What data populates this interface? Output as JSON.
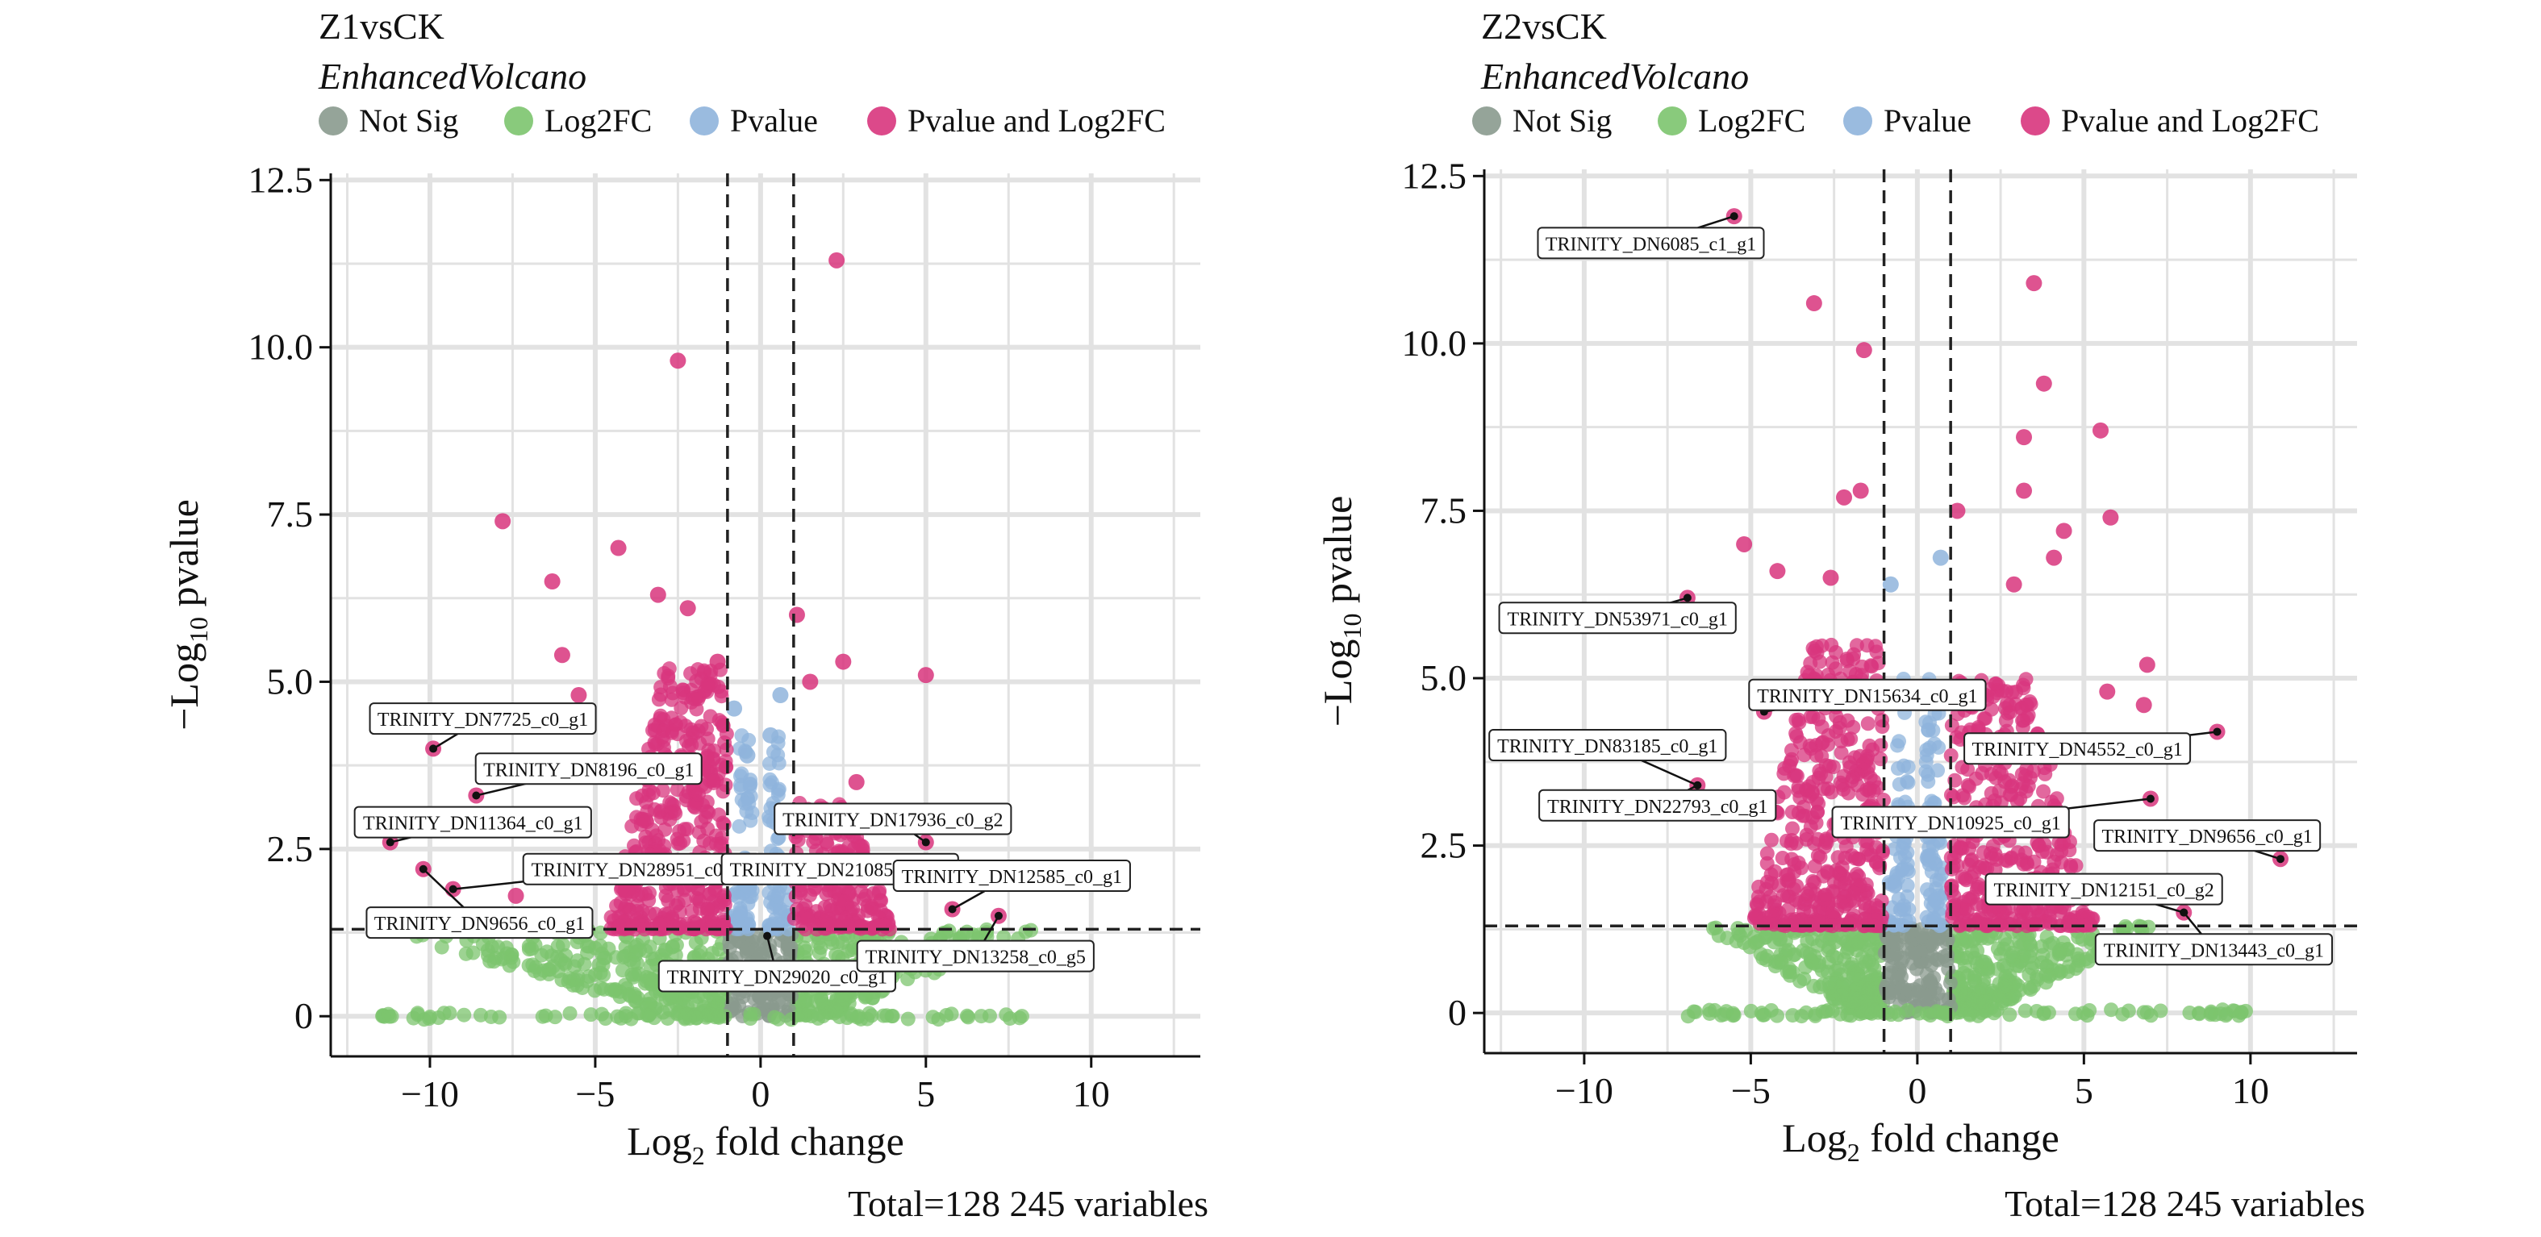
{
  "legend_labels": {
    "ns": "Not Sig",
    "fc": "Log2FC",
    "p": "Pvalue",
    "both": "Pvalue and Log2FC"
  },
  "colors": {
    "ns": "#8a9a8e",
    "fc": "#7cc46e",
    "p": "#8fb4dc",
    "both": "#d8357d"
  },
  "chart_data": [
    {
      "type": "scatter",
      "title": "Z1vsCK",
      "subtitle": "EnhancedVolcano",
      "xlabel_main": "Log",
      "xlabel_sub": "2",
      "xlabel_rest": " fold change",
      "ylabel_pre": "−Log",
      "ylabel_sub": "10",
      "ylabel_rest": " pvalue",
      "caption": "Total=128 245 variables",
      "xlim": [
        -13,
        13.3
      ],
      "ylim": [
        -0.6,
        12.6
      ],
      "xticks": [
        -10,
        -5,
        0,
        5,
        10
      ],
      "xtick_labels": [
        "−10",
        "−5",
        "0",
        "5",
        "10"
      ],
      "yticks": [
        0,
        2.5,
        5.0,
        7.5,
        10.0,
        12.5
      ],
      "ytick_labels": [
        "0",
        "2.5",
        "5.0",
        "7.5",
        "10.0",
        "12.5"
      ],
      "fc_cutoff": [
        -1,
        1
      ],
      "p_cutoff": 1.3,
      "grid": true,
      "legend_position": "top",
      "highlights": [
        {
          "x": 2.3,
          "y": 11.3,
          "cat": "both"
        },
        {
          "x": -2.5,
          "y": 9.8,
          "cat": "both"
        },
        {
          "x": -7.8,
          "y": 7.4,
          "cat": "both"
        },
        {
          "x": -4.3,
          "y": 7.0,
          "cat": "both"
        },
        {
          "x": -6.3,
          "y": 6.5,
          "cat": "both"
        },
        {
          "x": 1.1,
          "y": 6.0,
          "cat": "both"
        },
        {
          "x": -3.1,
          "y": 6.3,
          "cat": "both"
        },
        {
          "x": -2.2,
          "y": 6.1,
          "cat": "both"
        },
        {
          "x": -6.0,
          "y": 5.4,
          "cat": "both"
        },
        {
          "x": 5.0,
          "y": 5.1,
          "cat": "both"
        },
        {
          "x": 2.5,
          "y": 5.3,
          "cat": "both"
        },
        {
          "x": 1.5,
          "y": 5.0,
          "cat": "both"
        },
        {
          "x": -5.5,
          "y": 4.8,
          "cat": "both"
        },
        {
          "x": -9.9,
          "y": 4.0,
          "cat": "both"
        },
        {
          "x": -8.6,
          "y": 3.3,
          "cat": "both"
        },
        {
          "x": -6.1,
          "y": 3.8,
          "cat": "both"
        },
        {
          "x": -11.2,
          "y": 2.6,
          "cat": "both"
        },
        {
          "x": -10.2,
          "y": 2.2,
          "cat": "both"
        },
        {
          "x": -9.3,
          "y": 1.9,
          "cat": "both"
        },
        {
          "x": -7.4,
          "y": 1.8,
          "cat": "both"
        },
        {
          "x": 2.9,
          "y": 3.5,
          "cat": "both"
        },
        {
          "x": 5.0,
          "y": 2.6,
          "cat": "both"
        },
        {
          "x": 4.2,
          "y": 2.1,
          "cat": "both"
        },
        {
          "x": 5.8,
          "y": 1.6,
          "cat": "both"
        },
        {
          "x": 7.2,
          "y": 1.5,
          "cat": "both"
        },
        {
          "x": -1.3,
          "y": 5.3,
          "cat": "both"
        },
        {
          "x": -0.8,
          "y": 4.6,
          "cat": "p"
        },
        {
          "x": 0.6,
          "y": 4.8,
          "cat": "p"
        },
        {
          "x": 0.3,
          "y": 4.2,
          "cat": "p"
        },
        {
          "x": -0.4,
          "y": 3.9,
          "cat": "p"
        }
      ],
      "dense_regions": [
        {
          "cat": "fc",
          "x0": -11.5,
          "x1": -1,
          "y0": 0,
          "y1": 1.3,
          "n": 260,
          "shape": "wedge-left"
        },
        {
          "cat": "fc",
          "x0": 1,
          "x1": 8.5,
          "y0": 0,
          "y1": 1.3,
          "n": 220,
          "shape": "wedge-right"
        },
        {
          "cat": "ns",
          "x0": -1,
          "x1": 1,
          "y0": 0,
          "y1": 1.3,
          "n": 140,
          "shape": "box"
        },
        {
          "cat": "p",
          "x0": -1,
          "x1": 1,
          "y0": 1.3,
          "y1": 4.2,
          "n": 120,
          "shape": "funnel"
        },
        {
          "cat": "both",
          "x0": -4.8,
          "x1": -1,
          "y0": 1.3,
          "y1": 5.2,
          "n": 420,
          "shape": "mound-left"
        },
        {
          "cat": "both",
          "x0": 1,
          "x1": 4.2,
          "y0": 1.3,
          "y1": 3.2,
          "n": 220,
          "shape": "mound-right"
        },
        {
          "cat": "fc",
          "x0": -11.5,
          "x1": 8,
          "y0": -0.05,
          "y1": 0.05,
          "n": 90,
          "shape": "line"
        }
      ],
      "labels": [
        {
          "text": "TRINITY_DN7725_c0_g1",
          "px": -9.9,
          "py": 4.0,
          "lx": -8.4,
          "ly": 4.45
        },
        {
          "text": "TRINITY_DN8196_c0_g1",
          "px": -8.6,
          "py": 3.3,
          "lx": -5.2,
          "ly": 3.7
        },
        {
          "text": "TRINITY_DN11364_c0_g1",
          "px": -11.2,
          "py": 2.6,
          "lx": -8.7,
          "ly": 2.9
        },
        {
          "text": "TRINITY_DN28951_c0_g3",
          "px": -9.3,
          "py": 1.9,
          "lx": -3.6,
          "ly": 2.2
        },
        {
          "text": "TRINITY_DN9656_c0_g1",
          "px": -10.2,
          "py": 2.2,
          "lx": -8.5,
          "ly": 1.4
        },
        {
          "text": "TRINITY_DN29020_c0_g1",
          "px": 0.2,
          "py": 1.2,
          "lx": 0.5,
          "ly": 0.6
        },
        {
          "text": "TRINITY_DN17936_c0_g2",
          "px": 5.0,
          "py": 2.6,
          "lx": 4.0,
          "ly": 2.95
        },
        {
          "text": "TRINITY_DN21085_c2_g2",
          "px": 4.2,
          "py": 2.1,
          "lx": 2.4,
          "ly": 2.2
        },
        {
          "text": "TRINITY_DN12585_c0_g1",
          "px": 5.8,
          "py": 1.6,
          "lx": 7.6,
          "ly": 2.1
        },
        {
          "text": "TRINITY_DN13258_c0_g5",
          "px": 7.2,
          "py": 1.5,
          "lx": 6.5,
          "ly": 0.9
        }
      ]
    },
    {
      "type": "scatter",
      "title": "Z2vsCK",
      "subtitle": "EnhancedVolcano",
      "xlabel_main": "Log",
      "xlabel_sub": "2",
      "xlabel_rest": " fold change",
      "ylabel_pre": "−Log",
      "ylabel_sub": "10",
      "ylabel_rest": " pvalue",
      "caption": "Total=128 245 variables",
      "xlim": [
        -13,
        13.2
      ],
      "ylim": [
        -0.6,
        12.6
      ],
      "xticks": [
        -10,
        -5,
        0,
        5,
        10
      ],
      "xtick_labels": [
        "−10",
        "−5",
        "0",
        "5",
        "10"
      ],
      "yticks": [
        0,
        2.5,
        5.0,
        7.5,
        10.0,
        12.5
      ],
      "ytick_labels": [
        "0",
        "2.5",
        "5.0",
        "7.5",
        "10.0",
        "12.5"
      ],
      "fc_cutoff": [
        -1,
        1
      ],
      "p_cutoff": 1.3,
      "grid": true,
      "legend_position": "top",
      "highlights": [
        {
          "x": -5.5,
          "y": 11.9,
          "cat": "both"
        },
        {
          "x": -3.1,
          "y": 10.6,
          "cat": "both"
        },
        {
          "x": -1.6,
          "y": 9.9,
          "cat": "both"
        },
        {
          "x": 3.5,
          "y": 10.9,
          "cat": "both"
        },
        {
          "x": 3.8,
          "y": 9.4,
          "cat": "both"
        },
        {
          "x": 5.5,
          "y": 8.7,
          "cat": "both"
        },
        {
          "x": 3.2,
          "y": 8.6,
          "cat": "both"
        },
        {
          "x": 3.2,
          "y": 7.8,
          "cat": "both"
        },
        {
          "x": -1.7,
          "y": 7.8,
          "cat": "both"
        },
        {
          "x": -2.2,
          "y": 7.7,
          "cat": "both"
        },
        {
          "x": 5.8,
          "y": 7.4,
          "cat": "both"
        },
        {
          "x": 4.4,
          "y": 7.2,
          "cat": "both"
        },
        {
          "x": -6.9,
          "y": 6.2,
          "cat": "both"
        },
        {
          "x": -4.2,
          "y": 6.6,
          "cat": "both"
        },
        {
          "x": 1.2,
          "y": 7.5,
          "cat": "both"
        },
        {
          "x": 0.7,
          "y": 6.8,
          "cat": "p"
        },
        {
          "x": -0.8,
          "y": 6.4,
          "cat": "p"
        },
        {
          "x": 6.9,
          "y": 5.2,
          "cat": "both"
        },
        {
          "x": 9.0,
          "y": 4.2,
          "cat": "both"
        },
        {
          "x": 7.0,
          "y": 3.2,
          "cat": "both"
        },
        {
          "x": 10.9,
          "y": 2.3,
          "cat": "both"
        },
        {
          "x": 8.0,
          "y": 1.5,
          "cat": "both"
        },
        {
          "x": -6.6,
          "y": 3.4,
          "cat": "both"
        },
        {
          "x": -4.6,
          "y": 4.5,
          "cat": "both"
        },
        {
          "x": 6.8,
          "y": 4.6,
          "cat": "both"
        },
        {
          "x": 5.7,
          "y": 4.8,
          "cat": "both"
        },
        {
          "x": 4.1,
          "y": 6.8,
          "cat": "both"
        },
        {
          "x": 2.9,
          "y": 6.4,
          "cat": "both"
        },
        {
          "x": -5.2,
          "y": 7.0,
          "cat": "both"
        },
        {
          "x": -2.6,
          "y": 6.5,
          "cat": "both"
        }
      ],
      "dense_regions": [
        {
          "cat": "fc",
          "x0": -6.5,
          "x1": -1,
          "y0": 0,
          "y1": 1.3,
          "n": 240,
          "shape": "wedge-left"
        },
        {
          "cat": "fc",
          "x0": 1,
          "x1": 7.5,
          "y0": 0,
          "y1": 1.3,
          "n": 240,
          "shape": "wedge-right"
        },
        {
          "cat": "ns",
          "x0": -1,
          "x1": 1,
          "y0": 0,
          "y1": 1.3,
          "n": 140,
          "shape": "box"
        },
        {
          "cat": "p",
          "x0": -1,
          "x1": 1,
          "y0": 1.3,
          "y1": 5.0,
          "n": 140,
          "shape": "funnel"
        },
        {
          "cat": "both",
          "x0": -5.3,
          "x1": -1,
          "y0": 1.3,
          "y1": 5.5,
          "n": 420,
          "shape": "mound-left"
        },
        {
          "cat": "both",
          "x0": 1,
          "x1": 5.6,
          "y0": 1.3,
          "y1": 5.0,
          "n": 380,
          "shape": "mound-right"
        },
        {
          "cat": "fc",
          "x0": -7,
          "x1": 10,
          "y0": -0.05,
          "y1": 0.05,
          "n": 90,
          "shape": "line"
        }
      ],
      "labels": [
        {
          "text": "TRINITY_DN6085_c1_g1",
          "px": -5.5,
          "py": 11.9,
          "lx": -8.0,
          "ly": 11.5
        },
        {
          "text": "TRINITY_DN53971_c0_g1",
          "px": -6.9,
          "py": 6.2,
          "lx": -9.0,
          "ly": 5.9
        },
        {
          "text": "TRINITY_DN15634_c0_g1",
          "px": -4.6,
          "py": 4.5,
          "lx": -1.5,
          "ly": 4.75
        },
        {
          "text": "TRINITY_DN83185_c0_g1",
          "px": -6.6,
          "py": 3.4,
          "lx": -9.3,
          "ly": 4.0
        },
        {
          "text": "TRINITY_DN22793_c0_g1",
          "px": -6.6,
          "py": 3.4,
          "lx": -7.8,
          "ly": 3.1
        },
        {
          "text": "TRINITY_DN4552_c0_g1",
          "px": 9.0,
          "py": 4.2,
          "lx": 4.8,
          "ly": 3.95
        },
        {
          "text": "TRINITY_DN10925_c0_g1",
          "px": 7.0,
          "py": 3.2,
          "lx": 1.0,
          "ly": 2.85
        },
        {
          "text": "TRINITY_DN9656_c0_g1",
          "px": 10.9,
          "py": 2.3,
          "lx": 8.7,
          "ly": 2.65
        },
        {
          "text": "TRINITY_DN12151_c0_g2",
          "px": 8.0,
          "py": 1.5,
          "lx": 5.6,
          "ly": 1.85
        },
        {
          "text": "TRINITY_DN13443_c0_g1",
          "px": 8.0,
          "py": 1.5,
          "lx": 8.9,
          "ly": 0.95
        }
      ]
    }
  ]
}
